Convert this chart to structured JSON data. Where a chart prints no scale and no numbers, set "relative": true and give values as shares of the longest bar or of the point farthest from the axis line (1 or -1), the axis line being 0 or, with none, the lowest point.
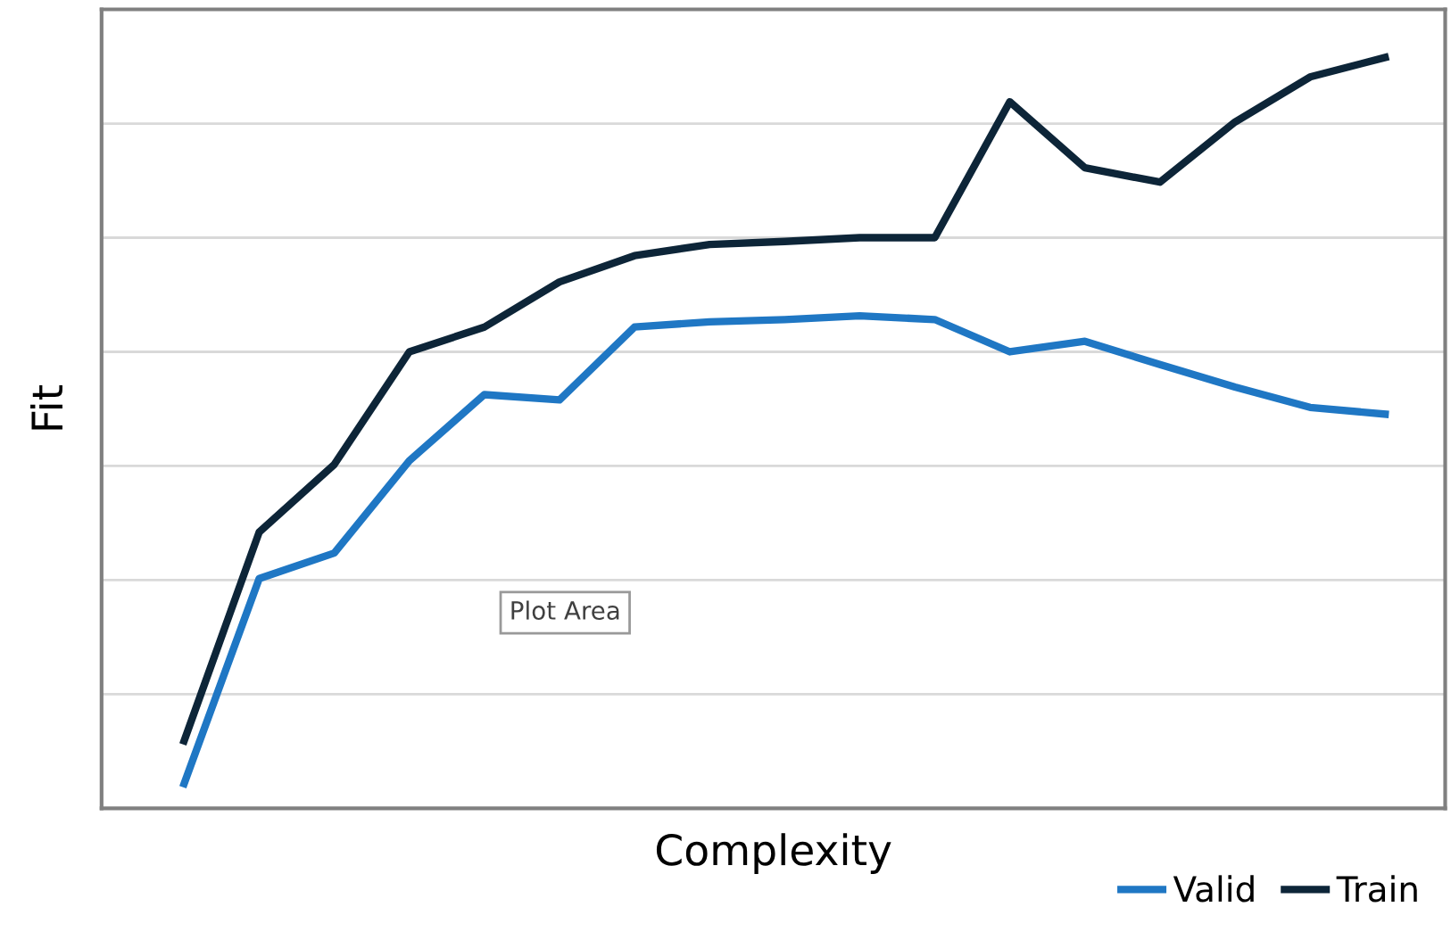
{
  "chart_data": {
    "type": "line",
    "xlabel": "Complexity",
    "ylabel": "Fit",
    "relative": true,
    "grid": "y",
    "legend": "bottom right",
    "marker": "none",
    "line_style": "solid",
    "categories": [
      null,
      null,
      null,
      null,
      null,
      null,
      null,
      null,
      null,
      null,
      null,
      null,
      null,
      null,
      null,
      null,
      null
    ],
    "series": [
      {
        "name": "Valid",
        "color": "#1f77c4",
        "values": [
          0.033,
          0.306,
          0.34,
          0.463,
          0.551,
          0.544,
          0.641,
          0.648,
          0.651,
          0.656,
          0.651,
          0.608,
          0.622,
          0.591,
          0.561,
          0.534,
          0.525
        ]
      },
      {
        "name": "Train",
        "color": "#0d2538",
        "values": [
          0.09,
          0.368,
          0.458,
          0.608,
          0.641,
          0.701,
          0.736,
          0.751,
          0.755,
          0.76,
          0.76,
          0.941,
          0.853,
          0.834,
          0.914,
          0.974,
          1.0
        ]
      }
    ],
    "annotations": [
      "Plot Area"
    ]
  }
}
